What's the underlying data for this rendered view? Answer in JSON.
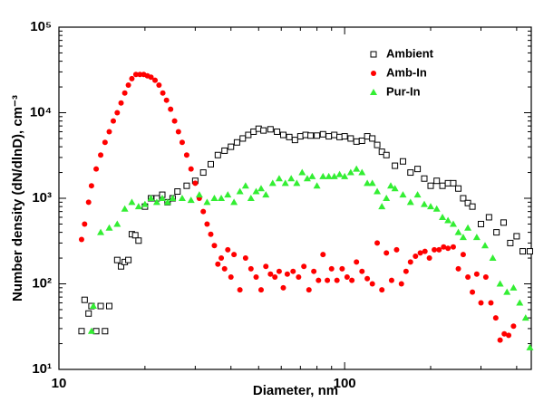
{
  "chart_data": {
    "type": "scatter",
    "xlabel": "Diameter, nm",
    "ylabel": "Number density (dN/dlnD), cm⁻³",
    "xscale": "log",
    "yscale": "log",
    "xlim": [
      10,
      450
    ],
    "ylim": [
      10,
      100000
    ],
    "xticks": [
      10,
      100
    ],
    "yticks": [
      {
        "value": 10,
        "label": "10¹"
      },
      {
        "value": 100,
        "label": "10²"
      },
      {
        "value": 1000,
        "label": "10³"
      },
      {
        "value": 10000,
        "label": "10⁴"
      },
      {
        "value": 100000,
        "label": "10⁵"
      }
    ],
    "grid": false,
    "legend": "upper right",
    "series": [
      {
        "name": "Ambient",
        "color": "#000000",
        "marker": "square-open",
        "x": [
          12,
          12.3,
          12.7,
          13,
          13.5,
          14,
          14.5,
          15,
          16,
          16.5,
          17,
          17.5,
          18,
          18.5,
          19,
          20,
          21,
          22,
          23,
          24,
          25,
          26,
          28,
          30,
          32,
          34,
          36,
          38,
          40,
          42,
          44,
          46,
          48,
          50,
          52,
          55,
          58,
          61,
          64,
          67,
          70,
          73,
          76,
          80,
          84,
          88,
          92,
          96,
          100,
          105,
          110,
          115,
          120,
          125,
          130,
          135,
          140,
          150,
          160,
          170,
          180,
          190,
          200,
          210,
          220,
          230,
          240,
          250,
          260,
          270,
          280,
          300,
          320,
          340,
          360,
          380,
          400,
          420,
          445
        ],
        "values": [
          28,
          65,
          45,
          55,
          28,
          55,
          28,
          55,
          190,
          160,
          180,
          190,
          380,
          370,
          320,
          800,
          1000,
          1000,
          1100,
          900,
          1000,
          1200,
          1400,
          1600,
          2000,
          2500,
          3200,
          3600,
          4000,
          4500,
          5000,
          5500,
          6000,
          6500,
          6200,
          6400,
          6000,
          5500,
          5200,
          4800,
          5300,
          5500,
          5400,
          5400,
          5600,
          5300,
          5500,
          5200,
          5300,
          5000,
          4600,
          4700,
          5300,
          5000,
          4200,
          3500,
          3200,
          2400,
          2700,
          2000,
          2200,
          1700,
          1400,
          1600,
          1400,
          1500,
          1500,
          1300,
          1000,
          880,
          800,
          500,
          600,
          400,
          520,
          300,
          360,
          240,
          240
        ]
      },
      {
        "name": "Amb-In",
        "color": "#ff0000",
        "marker": "circle",
        "x": [
          12,
          12.3,
          12.7,
          13,
          13.5,
          14,
          14.5,
          15,
          15.5,
          16,
          16.5,
          17,
          17.5,
          18,
          18.6,
          19.2,
          19.8,
          20.4,
          21,
          21.7,
          22.4,
          23.1,
          23.8,
          24.6,
          25.4,
          26.2,
          27,
          28,
          29,
          30,
          31,
          32,
          33,
          34,
          35,
          36,
          37,
          38,
          39,
          40,
          41,
          43,
          45,
          47,
          49,
          51,
          53,
          55,
          57,
          59,
          61,
          63,
          66,
          69,
          72,
          75,
          78,
          81,
          84,
          87,
          90,
          94,
          98,
          102,
          106,
          110,
          115,
          120,
          125,
          130,
          135,
          140,
          146,
          152,
          158,
          164,
          170,
          177,
          184,
          191,
          198,
          206,
          214,
          222,
          230,
          240,
          250,
          260,
          270,
          280,
          290,
          300,
          312,
          325,
          338,
          350,
          362,
          375,
          390
        ],
        "values": [
          330,
          500,
          900,
          1400,
          2200,
          3200,
          4500,
          6000,
          8000,
          10000,
          13000,
          17000,
          21000,
          25000,
          28000,
          28000,
          28000,
          27000,
          26000,
          24000,
          21000,
          17000,
          14000,
          11000,
          8000,
          6000,
          4500,
          3200,
          2200,
          1500,
          1000,
          700,
          500,
          380,
          280,
          170,
          200,
          150,
          250,
          120,
          220,
          85,
          200,
          150,
          120,
          85,
          160,
          130,
          120,
          140,
          90,
          130,
          140,
          120,
          160,
          85,
          140,
          110,
          220,
          110,
          150,
          110,
          150,
          120,
          110,
          180,
          140,
          115,
          100,
          300,
          85,
          230,
          110,
          250,
          100,
          140,
          180,
          210,
          230,
          240,
          200,
          250,
          250,
          270,
          260,
          270,
          150,
          220,
          120,
          80,
          130,
          60,
          120,
          60,
          40,
          22,
          26,
          25,
          32
        ]
      },
      {
        "name": "Pur-In",
        "color": "#33ee33",
        "marker": "triangle",
        "x": [
          13,
          13.2,
          14,
          15,
          16,
          17,
          18,
          19,
          20,
          21,
          22,
          23,
          24,
          25,
          27,
          29,
          31,
          33,
          35,
          37,
          39,
          41,
          43,
          45,
          47,
          49,
          51,
          53,
          56,
          59,
          62,
          65,
          68,
          71,
          74,
          77,
          80,
          84,
          88,
          92,
          96,
          100,
          105,
          110,
          115,
          120,
          125,
          130,
          135,
          140,
          145,
          150,
          160,
          170,
          180,
          190,
          200,
          210,
          220,
          230,
          240,
          250,
          260,
          270,
          290,
          310,
          330,
          350,
          370,
          390,
          410,
          430,
          445
        ],
        "values": [
          28,
          55,
          400,
          450,
          500,
          750,
          900,
          800,
          850,
          1000,
          900,
          1000,
          900,
          1000,
          1000,
          950,
          1100,
          900,
          1000,
          1000,
          1100,
          900,
          1200,
          1400,
          1000,
          1200,
          1300,
          1100,
          1500,
          1700,
          1500,
          1700,
          1500,
          2000,
          1700,
          1800,
          1400,
          1800,
          1800,
          1800,
          1900,
          1800,
          2000,
          2200,
          2000,
          1500,
          1500,
          1200,
          800,
          1000,
          1400,
          1300,
          1100,
          900,
          1100,
          850,
          800,
          750,
          600,
          550,
          500,
          400,
          350,
          450,
          350,
          280,
          200,
          100,
          80,
          90,
          60,
          40,
          18
        ]
      }
    ]
  }
}
